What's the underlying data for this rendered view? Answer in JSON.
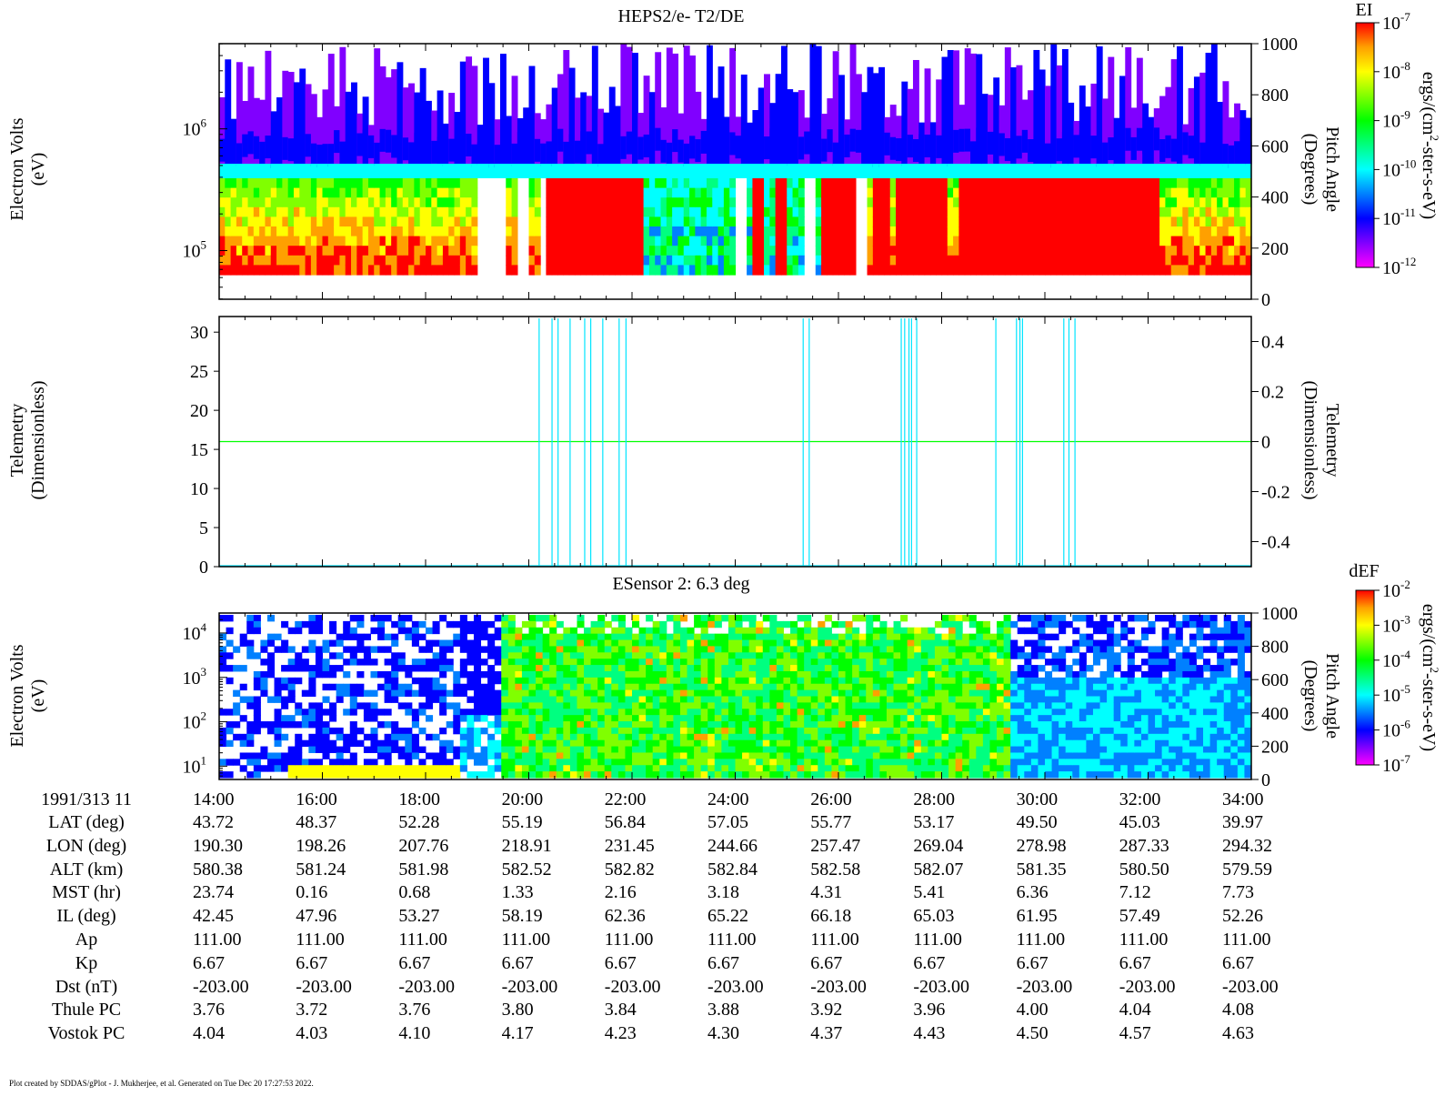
{
  "title": "HEPS2/e- T2/DE",
  "subtitle_panel3": "ESensor 2: 6.3 deg",
  "footer": "Plot created by SDDAS/gPlot - J. Mukherjee, et al.  Generated on Tue Dec 20 17:27:53 2022.",
  "colorbar_palette": [
    "#ff00ff",
    "#8000ff",
    "#0000ff",
    "#0080ff",
    "#00ffff",
    "#00ff80",
    "#00ff00",
    "#80ff00",
    "#ffff00",
    "#ffa000",
    "#ff0000"
  ],
  "chart_data": [
    {
      "type": "heatmap",
      "name": "panel-1",
      "ylabel_left": [
        "Electron Volts",
        "(eV)"
      ],
      "ylabel_right": [
        "Pitch Angle",
        "(Degrees)"
      ],
      "yticks_left": [
        {
          "value": 100000,
          "label": "10",
          "exp": "5"
        },
        {
          "value": 1000000,
          "label": "10",
          "exp": "6"
        }
      ],
      "ylim_left_log10": [
        4.6,
        6.7
      ],
      "yticks_right": [
        "0",
        "200",
        "400",
        "600",
        "800",
        "1000"
      ],
      "ylim_right": [
        0,
        1000
      ],
      "xlim_minutes": [
        0,
        1200
      ],
      "colorbar": {
        "label": "EI",
        "unit": "ergs/(cm^2-ster-s-eV)",
        "ticks": [
          {
            "base": "10",
            "exp": "-7"
          },
          {
            "base": "10",
            "exp": "-8"
          },
          {
            "base": "10",
            "exp": "-9"
          },
          {
            "base": "10",
            "exp": "-10"
          },
          {
            "base": "10",
            "exp": "-11"
          },
          {
            "base": "10",
            "exp": "-12"
          }
        ]
      }
    },
    {
      "type": "line",
      "name": "panel-2",
      "ylabel_left": [
        "Telemetry",
        "(Dimensionless)"
      ],
      "ylabel_right": [
        "Telemetry",
        "(Dimensionless)"
      ],
      "yticks_left": [
        "0",
        "5",
        "10",
        "15",
        "20",
        "25",
        "30"
      ],
      "ylim_left": [
        0,
        32
      ],
      "yticks_right": [
        "-0.4",
        "-0.2",
        "0",
        "0.2",
        "0.4"
      ],
      "ylim_right": [
        -0.5,
        0.5
      ],
      "series": [
        {
          "color": "#00ff00",
          "constant_right": 0
        },
        {
          "color": "#00e5ff",
          "spike_times_minutes": [
            372,
            387,
            394,
            408,
            425,
            432,
            446,
            465,
            473,
            679,
            686,
            793,
            797,
            802,
            805,
            811,
            903,
            927,
            931,
            934,
            982,
            988,
            995
          ]
        }
      ]
    },
    {
      "type": "heatmap",
      "name": "panel-3",
      "ylabel_left": [
        "Electron Volts",
        "(eV)"
      ],
      "ylabel_right": [
        "Pitch Angle",
        "(Degrees)"
      ],
      "yticks_left": [
        {
          "value": 10,
          "label": "10",
          "exp": "1"
        },
        {
          "value": 100,
          "label": "10",
          "exp": "2"
        },
        {
          "value": 1000,
          "label": "10",
          "exp": "3"
        },
        {
          "value": 10000,
          "label": "10",
          "exp": "4"
        }
      ],
      "ylim_left_log10": [
        0.7,
        4.45
      ],
      "yticks_right": [
        "0",
        "200",
        "400",
        "600",
        "800",
        "1000"
      ],
      "ylim_right": [
        0,
        1000
      ],
      "colorbar": {
        "label": "dEF",
        "unit": "ergs/(cm^2-ster-s-eV)",
        "ticks": [
          {
            "base": "10",
            "exp": "-2"
          },
          {
            "base": "10",
            "exp": "-3"
          },
          {
            "base": "10",
            "exp": "-4"
          },
          {
            "base": "10",
            "exp": "-5"
          },
          {
            "base": "10",
            "exp": "-6"
          },
          {
            "base": "10",
            "exp": "-7"
          }
        ]
      }
    }
  ],
  "ephemeris": {
    "header": "1991/313 11",
    "times": [
      "14:00",
      "16:00",
      "18:00",
      "20:00",
      "22:00",
      "24:00",
      "26:00",
      "28:00",
      "30:00",
      "32:00",
      "34:00"
    ],
    "rows": [
      {
        "label": "LAT (deg)",
        "values": [
          "43.72",
          "48.37",
          "52.28",
          "55.19",
          "56.84",
          "57.05",
          "55.77",
          "53.17",
          "49.50",
          "45.03",
          "39.97"
        ]
      },
      {
        "label": "LON (deg)",
        "values": [
          "190.30",
          "198.26",
          "207.76",
          "218.91",
          "231.45",
          "244.66",
          "257.47",
          "269.04",
          "278.98",
          "287.33",
          "294.32"
        ]
      },
      {
        "label": "ALT (km)",
        "values": [
          "580.38",
          "581.24",
          "581.98",
          "582.52",
          "582.82",
          "582.84",
          "582.58",
          "582.07",
          "581.35",
          "580.50",
          "579.59"
        ]
      },
      {
        "label": "MST (hr)",
        "values": [
          "23.74",
          "0.16",
          "0.68",
          "1.33",
          "2.16",
          "3.18",
          "4.31",
          "5.41",
          "6.36",
          "7.12",
          "7.73"
        ]
      },
      {
        "label": "IL (deg)",
        "values": [
          "42.45",
          "47.96",
          "53.27",
          "58.19",
          "62.36",
          "65.22",
          "66.18",
          "65.03",
          "61.95",
          "57.49",
          "52.26"
        ]
      },
      {
        "label": "Ap",
        "values": [
          "111.00",
          "111.00",
          "111.00",
          "111.00",
          "111.00",
          "111.00",
          "111.00",
          "111.00",
          "111.00",
          "111.00",
          "111.00"
        ]
      },
      {
        "label": "Kp",
        "values": [
          "6.67",
          "6.67",
          "6.67",
          "6.67",
          "6.67",
          "6.67",
          "6.67",
          "6.67",
          "6.67",
          "6.67",
          "6.67"
        ]
      },
      {
        "label": "Dst (nT)",
        "values": [
          "-203.00",
          "-203.00",
          "-203.00",
          "-203.00",
          "-203.00",
          "-203.00",
          "-203.00",
          "-203.00",
          "-203.00",
          "-203.00",
          "-203.00"
        ]
      },
      {
        "label": "Thule PC",
        "values": [
          "3.76",
          "3.72",
          "3.76",
          "3.80",
          "3.84",
          "3.88",
          "3.92",
          "3.96",
          "4.00",
          "4.04",
          "4.08"
        ]
      },
      {
        "label": "Vostok PC",
        "values": [
          "4.04",
          "4.03",
          "4.10",
          "4.17",
          "4.23",
          "4.30",
          "4.37",
          "4.43",
          "4.50",
          "4.57",
          "4.63"
        ]
      }
    ]
  }
}
